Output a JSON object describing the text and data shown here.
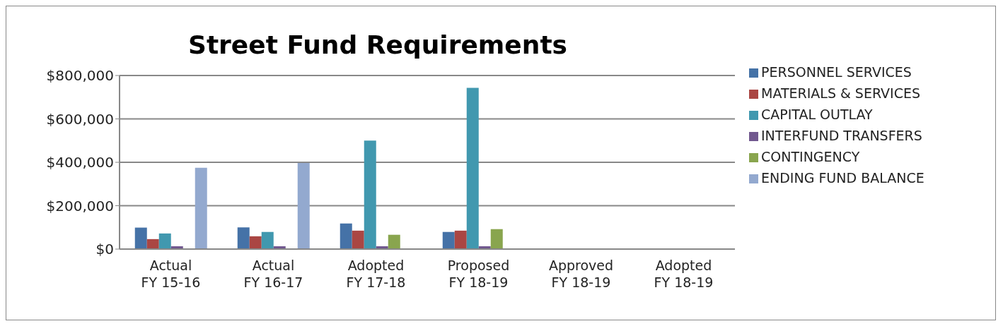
{
  "chart_data": {
    "type": "bar",
    "title": "Street Fund Requirements",
    "categories": [
      "Actual\nFY 15-16",
      "Actual\nFY 16-17",
      "Adopted\nFY 17-18",
      "Proposed\nFY 18-19",
      "Approved\nFY 18-19",
      "Adopted\nFY 18-19"
    ],
    "series": [
      {
        "name": "PERSONNEL SERVICES",
        "color": "#4572a7",
        "values": [
          99000,
          100000,
          118000,
          79000,
          null,
          null
        ]
      },
      {
        "name": "MATERIALS & SERVICES",
        "color": "#aa4643",
        "values": [
          46000,
          59000,
          85000,
          85000,
          null,
          null
        ]
      },
      {
        "name": "CAPITAL OUTLAY",
        "color": "#4198af",
        "values": [
          72000,
          79000,
          500000,
          743000,
          null,
          null
        ]
      },
      {
        "name": "INTERFUND TRANSFERS",
        "color": "#71588f",
        "values": [
          13000,
          13000,
          13000,
          13000,
          null,
          null
        ]
      },
      {
        "name": "CONTINGENCY",
        "color": "#89a54e",
        "values": [
          null,
          null,
          66000,
          92000,
          null,
          null
        ]
      },
      {
        "name": "ENDING FUND BALANCE",
        "color": "#93a9cf",
        "values": [
          375000,
          397000,
          null,
          null,
          null,
          null
        ]
      }
    ],
    "ylim": [
      0,
      800000
    ],
    "yticks": [
      {
        "value": 0,
        "label": "$0"
      },
      {
        "value": 200000,
        "label": "$200,000"
      },
      {
        "value": 400000,
        "label": "$400,000"
      },
      {
        "value": 600000,
        "label": "$600,000"
      },
      {
        "value": 800000,
        "label": "$800,000"
      }
    ],
    "grid": "y",
    "legend": "right"
  }
}
